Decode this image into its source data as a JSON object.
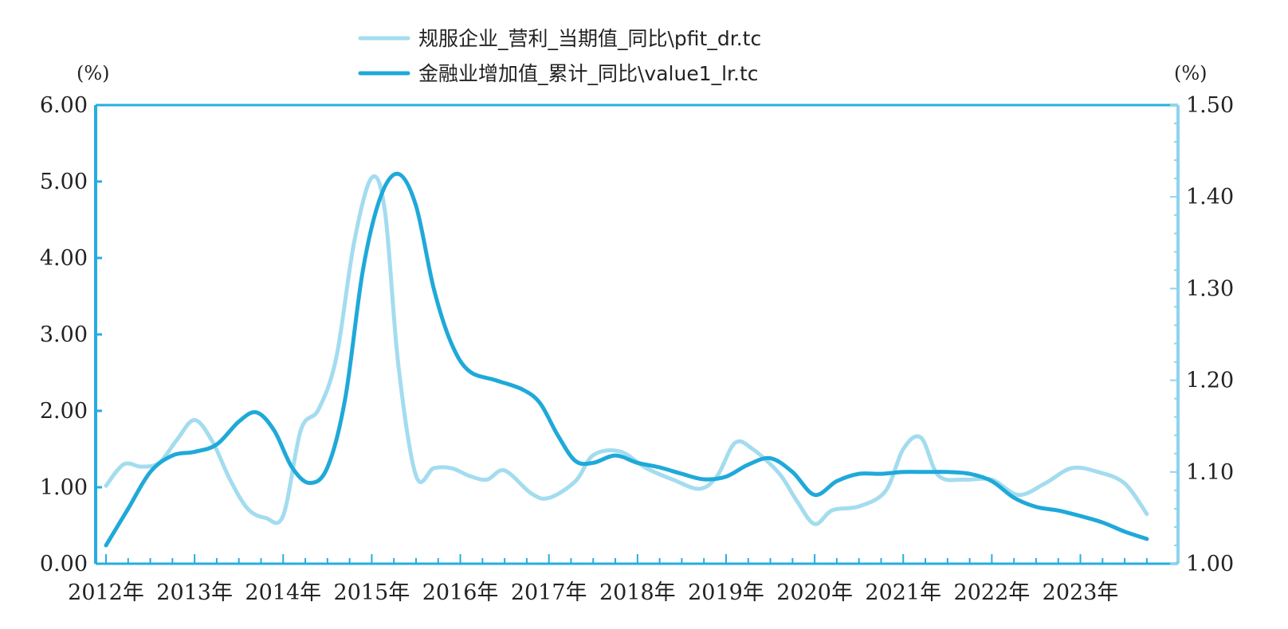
{
  "chart_data": {
    "type": "line",
    "title": "",
    "xlabel": "",
    "ylabel_left": "",
    "ylabel_right": "",
    "left_unit": "(%)",
    "right_unit": "(%)",
    "categories": [
      "2012年",
      "2013年",
      "2014年",
      "2015年",
      "2016年",
      "2017年",
      "2018年",
      "2019年",
      "2020年",
      "2021年",
      "2022年",
      "2023年"
    ],
    "y_left_ticks": [
      "0.00",
      "1.00",
      "2.00",
      "3.00",
      "4.00",
      "5.00",
      "6.00"
    ],
    "y_right_ticks": [
      "1.00",
      "1.10",
      "1.20",
      "1.30",
      "1.40",
      "1.50"
    ],
    "ylim_left": [
      0,
      6
    ],
    "ylim_right": [
      1.0,
      1.5
    ],
    "grid": false,
    "legend_position": "top-center",
    "series": [
      {
        "name": "规服企业_营利_当期值_同比\\pfit_dr.tc",
        "axis": "left",
        "color": "#a3dcef",
        "x": [
          2012.0,
          2012.2,
          2012.4,
          2012.6,
          2012.8,
          2013.0,
          2013.2,
          2013.4,
          2013.6,
          2013.8,
          2014.0,
          2014.2,
          2014.4,
          2014.6,
          2014.8,
          2015.0,
          2015.15,
          2015.3,
          2015.5,
          2015.7,
          2015.9,
          2016.1,
          2016.3,
          2016.5,
          2016.8,
          2017.0,
          2017.3,
          2017.5,
          2017.8,
          2018.1,
          2018.4,
          2018.7,
          2018.9,
          2019.1,
          2019.3,
          2019.6,
          2019.8,
          2020.0,
          2020.2,
          2020.5,
          2020.8,
          2021.0,
          2021.2,
          2021.4,
          2021.7,
          2022.0,
          2022.3,
          2022.6,
          2022.9,
          2023.2,
          2023.5,
          2023.75
        ],
        "y": [
          1.02,
          1.3,
          1.27,
          1.32,
          1.62,
          1.88,
          1.6,
          1.1,
          0.72,
          0.6,
          0.63,
          1.75,
          2.02,
          2.7,
          4.2,
          5.05,
          4.6,
          2.6,
          1.15,
          1.25,
          1.25,
          1.15,
          1.1,
          1.22,
          0.92,
          0.86,
          1.08,
          1.42,
          1.47,
          1.25,
          1.1,
          0.98,
          1.15,
          1.58,
          1.5,
          1.18,
          0.82,
          0.52,
          0.7,
          0.75,
          0.95,
          1.5,
          1.65,
          1.15,
          1.1,
          1.1,
          0.9,
          1.05,
          1.25,
          1.2,
          1.05,
          0.65
        ]
      },
      {
        "name": "金融业增加值_累计_同比\\value1_lr.tc",
        "axis": "right",
        "color": "#1fa9d9",
        "x": [
          2012.0,
          2012.25,
          2012.5,
          2012.75,
          2013.0,
          2013.25,
          2013.5,
          2013.7,
          2013.9,
          2014.1,
          2014.3,
          2014.5,
          2014.7,
          2014.9,
          2015.1,
          2015.3,
          2015.5,
          2015.7,
          2015.9,
          2016.1,
          2016.4,
          2016.7,
          2016.9,
          2017.1,
          2017.3,
          2017.5,
          2017.75,
          2018.0,
          2018.25,
          2018.5,
          2018.75,
          2019.0,
          2019.25,
          2019.5,
          2019.75,
          2020.0,
          2020.25,
          2020.5,
          2020.75,
          2021.0,
          2021.25,
          2021.5,
          2021.75,
          2022.0,
          2022.25,
          2022.5,
          2022.75,
          2023.0,
          2023.25,
          2023.5,
          2023.75
        ],
        "y": [
          1.02,
          1.06,
          1.1,
          1.118,
          1.122,
          1.13,
          1.155,
          1.165,
          1.145,
          1.105,
          1.088,
          1.105,
          1.18,
          1.32,
          1.4,
          1.425,
          1.39,
          1.3,
          1.24,
          1.21,
          1.2,
          1.19,
          1.175,
          1.14,
          1.112,
          1.11,
          1.118,
          1.11,
          1.105,
          1.098,
          1.092,
          1.095,
          1.108,
          1.115,
          1.1,
          1.075,
          1.09,
          1.098,
          1.098,
          1.1,
          1.1,
          1.1,
          1.098,
          1.09,
          1.072,
          1.062,
          1.058,
          1.052,
          1.045,
          1.035,
          1.027
        ]
      }
    ]
  }
}
